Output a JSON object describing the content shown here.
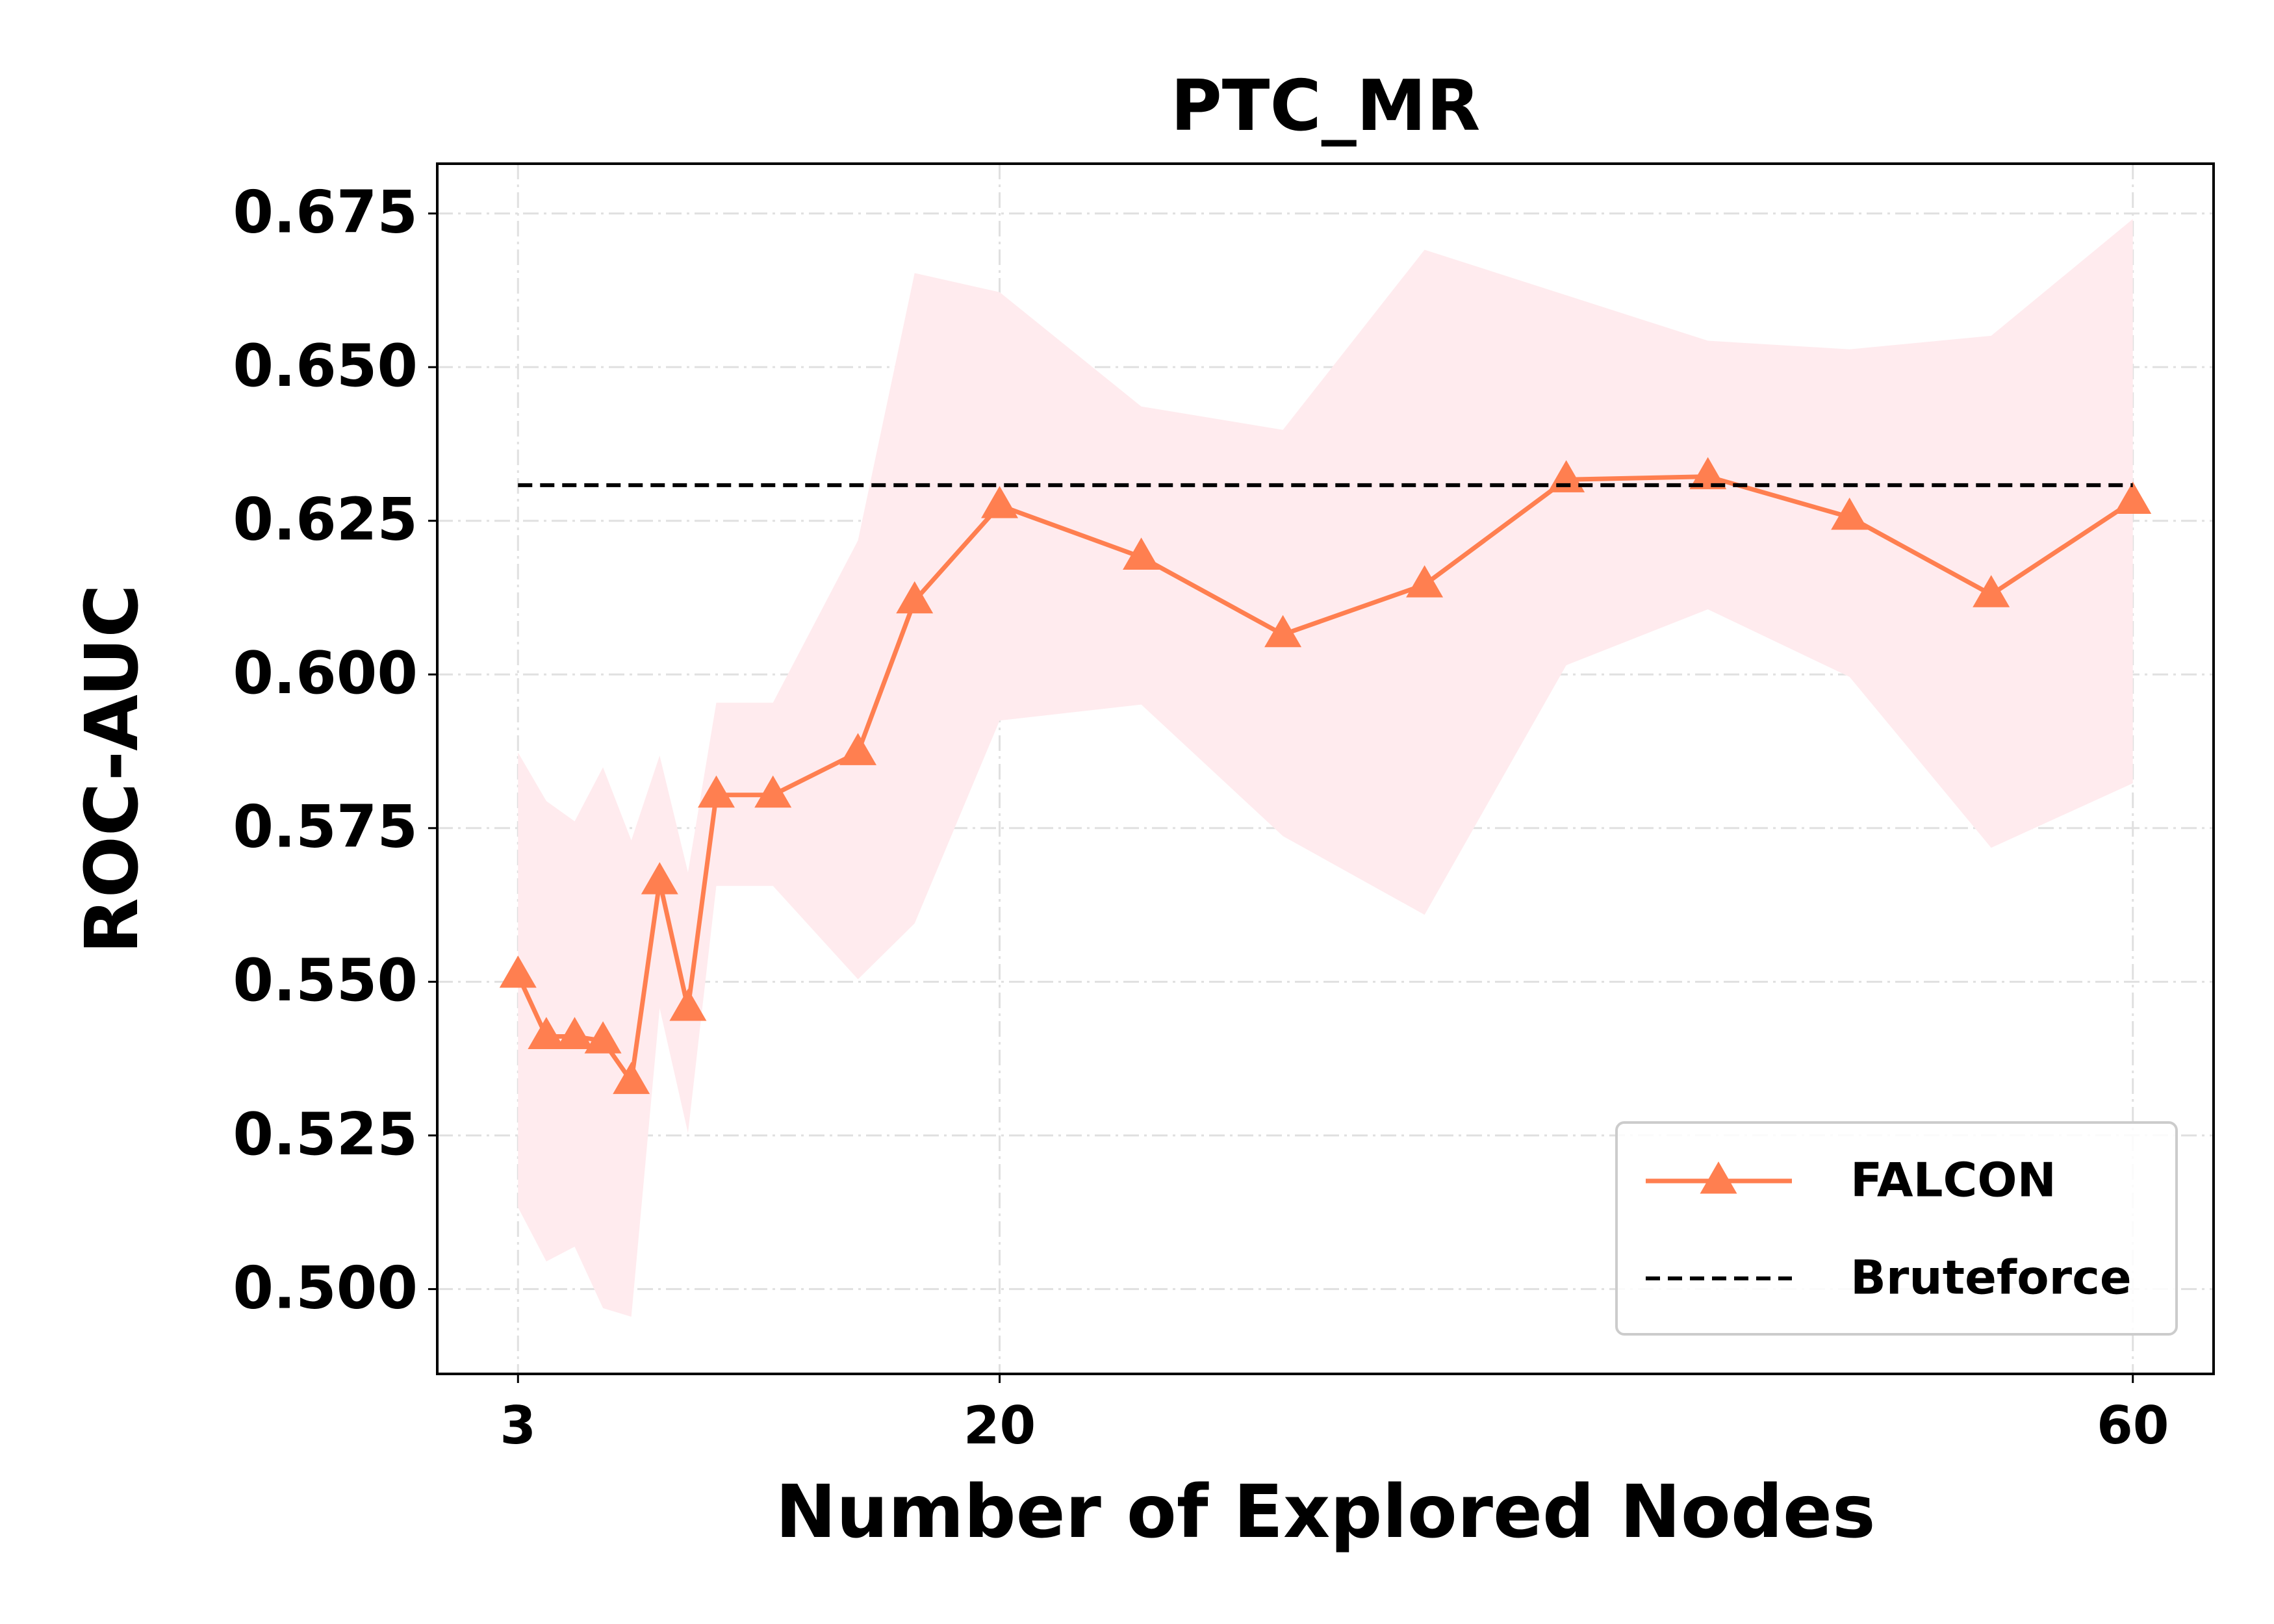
{
  "chart_data": {
    "type": "line",
    "title": "PTC_MR",
    "x_label": "Number of Explored Nodes",
    "y_label": "ROC-AUC",
    "x": [
      3,
      4,
      5,
      6,
      7,
      8,
      9,
      10,
      12,
      15,
      17,
      20,
      25,
      30,
      35,
      40,
      45,
      50,
      55,
      60
    ],
    "series": [
      {
        "name": "FALCON",
        "color": "#ff7f50",
        "band_color": "#ffebee",
        "marker": "triangle",
        "values": [
          0.5511,
          0.5411,
          0.5411,
          0.5404,
          0.5338,
          0.5663,
          0.5457,
          0.5804,
          0.5804,
          0.5873,
          0.612,
          0.6275,
          0.6191,
          0.6065,
          0.6146,
          0.6317,
          0.6322,
          0.6256,
          0.613,
          0.6282
        ],
        "lower": [
          0.5133,
          0.5045,
          0.5069,
          0.4969,
          0.4955,
          0.5457,
          0.5254,
          0.5656,
          0.5656,
          0.5504,
          0.5595,
          0.5925,
          0.5951,
          0.5737,
          0.5609,
          0.6015,
          0.6106,
          0.5996,
          0.5718,
          0.5823
        ],
        "upper": [
          0.5873,
          0.5794,
          0.5761,
          0.5849,
          0.573,
          0.5868,
          0.5678,
          0.5954,
          0.5954,
          0.6218,
          0.6653,
          0.6622,
          0.6436,
          0.6398,
          0.6691,
          0.6617,
          0.6543,
          0.6529,
          0.6551,
          0.6741
        ]
      },
      {
        "name": "Bruteforce",
        "color": "#000000",
        "dashed": true,
        "value": 0.6308
      }
    ],
    "xlim": [
      0.15,
      62.85
    ],
    "xticks": [
      3,
      20,
      60
    ],
    "ylim": [
      0.4862,
      0.6831
    ],
    "yticks": [
      {
        "value": 0.5,
        "label": "0.500"
      },
      {
        "value": 0.525,
        "label": "0.525"
      },
      {
        "value": 0.55,
        "label": "0.550"
      },
      {
        "value": 0.575,
        "label": "0.575"
      },
      {
        "value": 0.6,
        "label": "0.600"
      },
      {
        "value": 0.625,
        "label": "0.625"
      },
      {
        "value": 0.65,
        "label": "0.650"
      },
      {
        "value": 0.675,
        "label": "0.675"
      }
    ],
    "grid": true,
    "legend": "lower right"
  }
}
